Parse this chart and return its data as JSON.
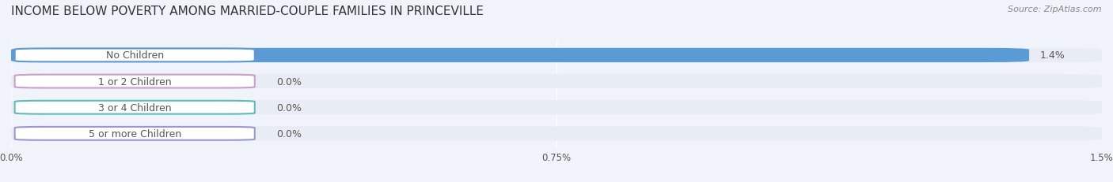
{
  "title": "INCOME BELOW POVERTY AMONG MARRIED-COUPLE FAMILIES IN PRINCEVILLE",
  "source": "Source: ZipAtlas.com",
  "categories": [
    "No Children",
    "1 or 2 Children",
    "3 or 4 Children",
    "5 or more Children"
  ],
  "values": [
    1.4,
    0.0,
    0.0,
    0.0
  ],
  "bar_colors": [
    "#5b9bd5",
    "#c9a0c8",
    "#5bbdb5",
    "#9999cc"
  ],
  "xlim": [
    0,
    1.5
  ],
  "xticks": [
    0.0,
    0.75,
    1.5
  ],
  "xtick_labels": [
    "0.0%",
    "0.75%",
    "1.5%"
  ],
  "background_color": "#f0f4fa",
  "bar_bg_color": "#e8edf5",
  "label_color": "#555555",
  "title_color": "#333333",
  "source_color": "#888888",
  "value_label_color": "#555555",
  "bar_height": 0.55,
  "title_fontsize": 11,
  "label_fontsize": 9,
  "tick_fontsize": 8.5,
  "source_fontsize": 8
}
